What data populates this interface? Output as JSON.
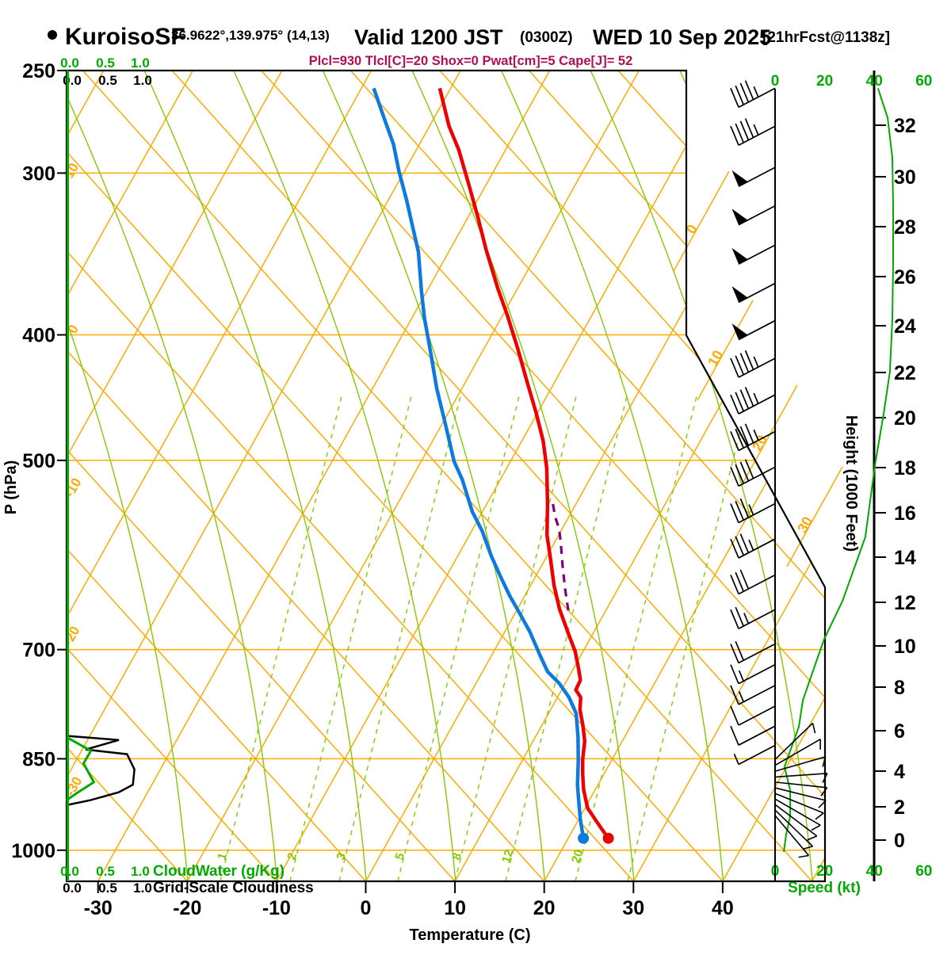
{
  "title": {
    "station": "KuroisoSF",
    "coords": "36.9622°,139.975° (14,13)",
    "valid_main": "Valid 1200 JST",
    "valid_z": "(0300Z)",
    "valid_date": "WED 10 Sep 2025",
    "fcst_tag": "[21hrFcst@1138z]"
  },
  "params_line": "Plcl=930 Tlcl[C]=20 Shox=0 Pwat[cm]=5 Cape[J]= 52",
  "axes": {
    "pressure": {
      "label": "P (hPa)",
      "ticks": [
        250,
        300,
        400,
        500,
        700,
        850,
        1000
      ]
    },
    "temperature": {
      "label": "Temperature (C)",
      "ticks": [
        -30,
        -20,
        -10,
        0,
        10,
        20,
        30,
        40
      ]
    },
    "height": {
      "label": "Height (1000 Feet)",
      "ticks": [
        0,
        2,
        4,
        6,
        8,
        10,
        12,
        14,
        16,
        18,
        20,
        22,
        24,
        26,
        28,
        30,
        32
      ]
    },
    "speed": {
      "label": "Speed (kt)",
      "ticks": [
        0,
        20,
        40,
        60
      ]
    },
    "cloudwater": {
      "label": "CloudWater (g/Kg)",
      "scale": [
        "0.0",
        "0.5",
        "1.0"
      ]
    },
    "cloudiness": {
      "label": "Grid-Scale Cloudiness",
      "scale": [
        "0.0",
        "0.5",
        "1.0"
      ]
    }
  },
  "grid_labels": {
    "isotherm_left": [
      "10",
      "0",
      "-10",
      "-20",
      "-30"
    ],
    "isotherm_diagonal": [
      "0",
      "10",
      "20",
      "30"
    ],
    "mixing_ratio": [
      "1",
      "2",
      "3",
      "5",
      "8",
      "12",
      "20"
    ]
  },
  "colors": {
    "orange": "#ffaa00",
    "grid_green": "#85c900",
    "bright_green": "#00aa00",
    "temp_red": "#ee0000",
    "dew_blue": "#0d7ae0",
    "parcel_purple": "#800080",
    "subtitle_crimson": "#b01050",
    "black": "#000000"
  },
  "chart_data": {
    "type": "skewT-logP sounding",
    "title": "KuroisoSF sounding Valid 1200 JST (0300Z) WED 10 Sep 2025",
    "pressure_range_hPa": [
      250,
      1050
    ],
    "temperature_range_C": [
      -30,
      40
    ],
    "temperature_profile_pT": [
      [
        979,
        24.5
      ],
      [
        968,
        23.6
      ],
      [
        951,
        22.2
      ],
      [
        928,
        20.3
      ],
      [
        898,
        18.7
      ],
      [
        873,
        17.6
      ],
      [
        851,
        16.7
      ],
      [
        824,
        15.8
      ],
      [
        801,
        14.6
      ],
      [
        779,
        13.3
      ],
      [
        762,
        12.6
      ],
      [
        752,
        11.6
      ],
      [
        739,
        11.5
      ],
      [
        726,
        10.7
      ],
      [
        702,
        9.1
      ],
      [
        681,
        7.3
      ],
      [
        651,
        4.7
      ],
      [
        624,
        2.6
      ],
      [
        596,
        0.6
      ],
      [
        571,
        -1.3
      ],
      [
        540,
        -3.2
      ],
      [
        507,
        -5.5
      ],
      [
        483,
        -7.6
      ],
      [
        459,
        -10.2
      ],
      [
        434,
        -13.2
      ],
      [
        410,
        -16.2
      ],
      [
        386,
        -19.5
      ],
      [
        369,
        -22.1
      ],
      [
        344,
        -25.9
      ],
      [
        325,
        -28.8
      ],
      [
        307,
        -31.8
      ],
      [
        288,
        -35.2
      ],
      [
        276,
        -37.8
      ],
      [
        258,
        -41.2
      ]
    ],
    "dewpoint_profile_pT": [
      [
        979,
        21.7
      ],
      [
        947,
        20.2
      ],
      [
        915,
        18.8
      ],
      [
        890,
        17.7
      ],
      [
        853,
        16.3
      ],
      [
        818,
        14.8
      ],
      [
        784,
        13.1
      ],
      [
        762,
        11.3
      ],
      [
        743,
        9.3
      ],
      [
        728,
        7.3
      ],
      [
        708,
        5.5
      ],
      [
        678,
        2.8
      ],
      [
        657,
        0.6
      ],
      [
        636,
        -1.7
      ],
      [
        614,
        -4.0
      ],
      [
        592,
        -6.3
      ],
      [
        567,
        -8.8
      ],
      [
        548,
        -11.1
      ],
      [
        517,
        -14.3
      ],
      [
        501,
        -16.3
      ],
      [
        468,
        -19.7
      ],
      [
        440,
        -22.8
      ],
      [
        413,
        -25.7
      ],
      [
        388,
        -28.6
      ],
      [
        370,
        -30.6
      ],
      [
        345,
        -33.4
      ],
      [
        328,
        -35.9
      ],
      [
        315,
        -37.9
      ],
      [
        299,
        -40.6
      ],
      [
        285,
        -42.9
      ],
      [
        271,
        -45.8
      ],
      [
        258,
        -48.6
      ]
    ],
    "parcel_path_pT": [
      [
        653,
        5.8
      ],
      [
        630,
        4.2
      ],
      [
        605,
        2.5
      ],
      [
        580,
        0.8
      ],
      [
        565,
        -0.3
      ],
      [
        553,
        -1.5
      ],
      [
        540,
        -2.6
      ]
    ],
    "wind_speed_profile_p_kt": [
      [
        258,
        41.5
      ],
      [
        272,
        45.4
      ],
      [
        292,
        47.3
      ],
      [
        318,
        47.6
      ],
      [
        352,
        47.6
      ],
      [
        389,
        47.3
      ],
      [
        427,
        46.3
      ],
      [
        460,
        43.8
      ],
      [
        504,
        40.3
      ],
      [
        573,
        36.4
      ],
      [
        642,
        27.2
      ],
      [
        687,
        19.8
      ],
      [
        715,
        16.6
      ],
      [
        766,
        11.2
      ],
      [
        803,
        9.6
      ],
      [
        841,
        5.8
      ],
      [
        862,
        3.8
      ],
      [
        899,
        6.1
      ],
      [
        941,
        6.1
      ],
      [
        972,
        4.5
      ],
      [
        1003,
        3.5
      ]
    ],
    "wind_barbs_p_kt": [
      [
        258,
        45
      ],
      [
        276,
        45
      ],
      [
        297,
        50
      ],
      [
        318,
        50
      ],
      [
        341,
        50
      ],
      [
        365,
        50
      ],
      [
        390,
        50
      ],
      [
        417,
        45
      ],
      [
        445,
        45
      ],
      [
        475,
        45
      ],
      [
        506,
        40
      ],
      [
        540,
        35
      ],
      [
        575,
        35
      ],
      [
        613,
        30
      ],
      [
        652,
        25
      ],
      [
        693,
        20
      ],
      [
        719,
        15
      ],
      [
        746,
        15
      ],
      [
        774,
        10
      ],
      [
        802,
        10
      ],
      [
        830,
        5
      ]
    ],
    "surface_fan_barbs_p_kt_angle": [
      [
        851,
        5,
        -44
      ],
      [
        860,
        5,
        -30
      ],
      [
        869,
        5,
        -16
      ],
      [
        878,
        5,
        -4
      ],
      [
        886,
        5,
        6
      ],
      [
        895,
        5,
        14
      ],
      [
        904,
        5,
        22
      ],
      [
        913,
        5,
        30
      ],
      [
        922,
        5,
        37
      ],
      [
        931,
        5,
        44
      ],
      [
        940,
        5,
        50
      ]
    ],
    "cloudiness_profile_p_frac": [
      [
        816,
        0
      ],
      [
        822,
        0.71
      ],
      [
        836,
        0.26
      ],
      [
        843,
        0.82
      ],
      [
        866,
        0.92
      ],
      [
        890,
        0.9
      ],
      [
        902,
        0.71
      ],
      [
        915,
        0.32
      ],
      [
        923,
        0
      ]
    ],
    "cloudwater_profile_p_gkg": [
      [
        818,
        0
      ],
      [
        838,
        0.33
      ],
      [
        857,
        0.23
      ],
      [
        886,
        0.37
      ],
      [
        905,
        0.12
      ],
      [
        915,
        0
      ]
    ]
  }
}
